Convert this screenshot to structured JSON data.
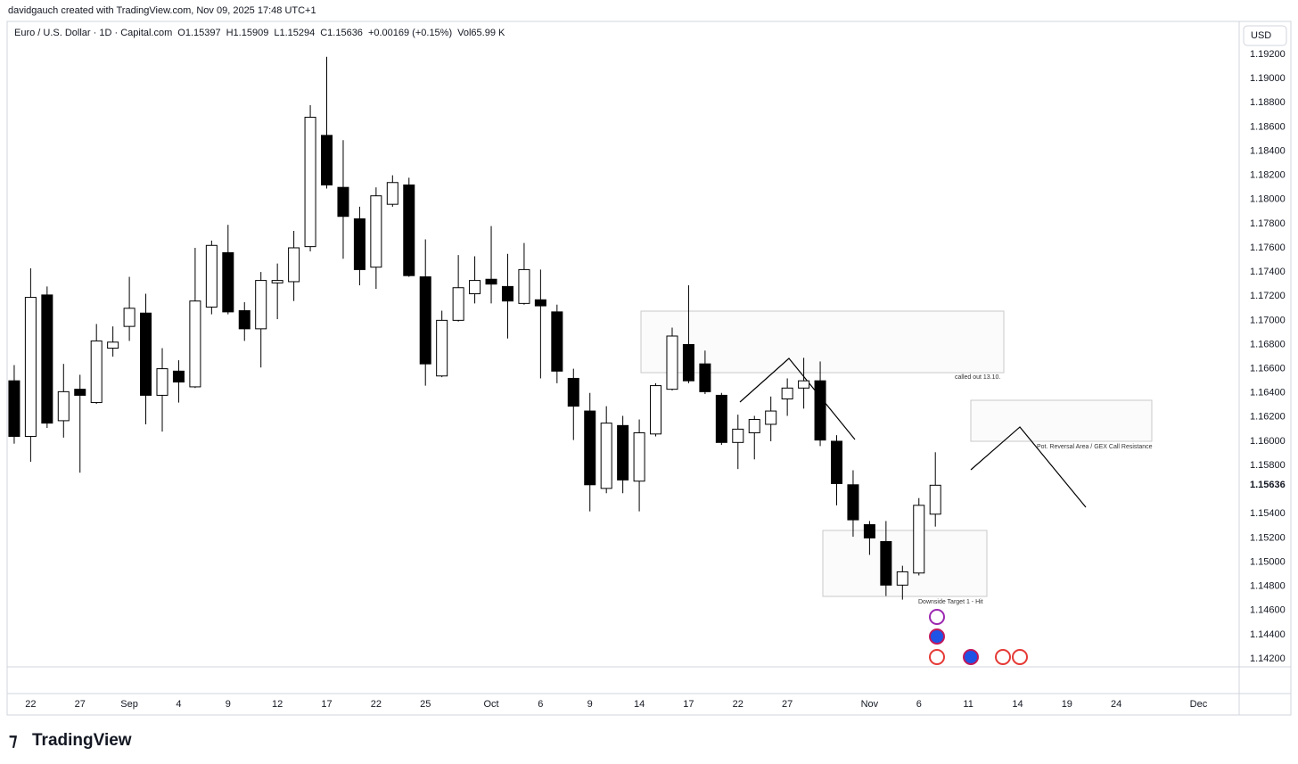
{
  "header": {
    "credit": "davidgauch created with TradingView.com, Nov 09, 2025 17:48 UTC+1",
    "currency_button": "USD",
    "logo": "TradingView"
  },
  "chart_data": {
    "type": "candlestick",
    "legend": {
      "symbol": "Euro / U.S. Dollar · 1D · Capital.com",
      "open": "O1.15397",
      "high": "H1.15909",
      "low": "L1.15294",
      "close": "C1.15636",
      "change": "+0.00169 (+0.15%)",
      "volume": "Vol65.99 K"
    },
    "open": [
      1.165,
      1.1604,
      1.1721,
      1.1617,
      1.1643,
      1.1632,
      1.1677,
      1.1695,
      1.1706,
      1.1638,
      1.1658,
      1.1645,
      1.1711,
      1.1756,
      1.1708,
      1.1693,
      1.1731,
      1.1732,
      1.1761,
      1.1853,
      1.181,
      1.1784,
      1.1744,
      1.1796,
      1.1812,
      1.1736,
      1.1654,
      1.17,
      1.1722,
      1.1734,
      1.1728,
      1.1714,
      1.1717,
      1.1707,
      1.1652,
      1.1625,
      1.1561,
      1.1613,
      1.1567,
      1.1606,
      1.1643,
      1.168,
      1.1664,
      1.1638,
      1.1599,
      1.1607,
      1.1614,
      1.1635,
      1.1644,
      1.165,
      1.16,
      1.1564,
      1.1531,
      1.1517,
      1.1481,
      1.1491,
      1.15397
    ],
    "high": [
      1.1663,
      1.1743,
      1.1728,
      1.1664,
      1.1655,
      1.1697,
      1.1695,
      1.1736,
      1.1722,
      1.1677,
      1.1667,
      1.176,
      1.1766,
      1.1779,
      1.1715,
      1.174,
      1.1747,
      1.1774,
      1.1878,
      1.1918,
      1.1849,
      1.1794,
      1.181,
      1.182,
      1.1818,
      1.1767,
      1.1708,
      1.1754,
      1.1753,
      1.1778,
      1.1755,
      1.1764,
      1.1742,
      1.1713,
      1.166,
      1.164,
      1.1629,
      1.1621,
      1.1618,
      1.1648,
      1.1694,
      1.1729,
      1.1675,
      1.164,
      1.1622,
      1.1621,
      1.1637,
      1.1652,
      1.1669,
      1.1666,
      1.1605,
      1.1576,
      1.1534,
      1.1534,
      1.1497,
      1.1553,
      1.15909
    ],
    "low": [
      1.1598,
      1.1583,
      1.1611,
      1.1603,
      1.1574,
      1.1631,
      1.167,
      1.1683,
      1.1614,
      1.1608,
      1.1632,
      1.1644,
      1.1705,
      1.1705,
      1.1683,
      1.1661,
      1.1701,
      1.1716,
      1.1757,
      1.1809,
      1.1751,
      1.1729,
      1.1726,
      1.1794,
      1.1736,
      1.1646,
      1.1653,
      1.1699,
      1.1714,
      1.1714,
      1.1685,
      1.1713,
      1.1652,
      1.1648,
      1.1601,
      1.1542,
      1.1557,
      1.1557,
      1.1542,
      1.1604,
      1.1642,
      1.1648,
      1.1639,
      1.1597,
      1.1577,
      1.1585,
      1.16,
      1.1621,
      1.1627,
      1.1596,
      1.1547,
      1.1521,
      1.1506,
      1.1472,
      1.1469,
      1.1489,
      1.15294
    ],
    "close": [
      1.1604,
      1.1719,
      1.1615,
      1.1641,
      1.1638,
      1.1683,
      1.1682,
      1.171,
      1.1638,
      1.166,
      1.1649,
      1.1716,
      1.1762,
      1.1707,
      1.1693,
      1.1733,
      1.1733,
      1.176,
      1.1868,
      1.1812,
      1.1786,
      1.1742,
      1.1803,
      1.1814,
      1.1737,
      1.1664,
      1.17,
      1.1727,
      1.1733,
      1.173,
      1.1716,
      1.1742,
      1.1712,
      1.1658,
      1.1629,
      1.1564,
      1.1615,
      1.1568,
      1.1607,
      1.1646,
      1.1687,
      1.165,
      1.1641,
      1.1599,
      1.161,
      1.1618,
      1.1625,
      1.1644,
      1.165,
      1.1601,
      1.1565,
      1.1535,
      1.152,
      1.1481,
      1.1492,
      1.1547,
      1.15636
    ],
    "up_color": "#ffffff",
    "down_color": "#000000",
    "wick_color": "#000000",
    "last_price_label": "1.15636",
    "xlim": [
      -0.43,
      74.47
    ],
    "xticks": [
      {
        "value": 1,
        "label": "22"
      },
      {
        "value": 4,
        "label": "27"
      },
      {
        "value": 7,
        "label": "Sep"
      },
      {
        "value": 10,
        "label": "4"
      },
      {
        "value": 13,
        "label": "9"
      },
      {
        "value": 16,
        "label": "12"
      },
      {
        "value": 19,
        "label": "17"
      },
      {
        "value": 22,
        "label": "22"
      },
      {
        "value": 25,
        "label": "25"
      },
      {
        "value": 29,
        "label": "Oct"
      },
      {
        "value": 32,
        "label": "6"
      },
      {
        "value": 35,
        "label": "9"
      },
      {
        "value": 38,
        "label": "14"
      },
      {
        "value": 41,
        "label": "17"
      },
      {
        "value": 44,
        "label": "22"
      },
      {
        "value": 47,
        "label": "27"
      },
      {
        "value": 52,
        "label": "Nov"
      },
      {
        "value": 55,
        "label": "6"
      },
      {
        "value": 58,
        "label": "11"
      },
      {
        "value": 61,
        "label": "14"
      },
      {
        "value": 64,
        "label": "19"
      },
      {
        "value": 67,
        "label": "24"
      },
      {
        "value": 72,
        "label": "Dec"
      }
    ],
    "ylim": [
      1.14134,
      1.19296
    ],
    "yticks": [
      {
        "value": 1.192,
        "label": "1.19200"
      },
      {
        "value": 1.19,
        "label": "1.19000"
      },
      {
        "value": 1.188,
        "label": "1.18800"
      },
      {
        "value": 1.186,
        "label": "1.18600"
      },
      {
        "value": 1.184,
        "label": "1.18400"
      },
      {
        "value": 1.182,
        "label": "1.18200"
      },
      {
        "value": 1.18,
        "label": "1.18000"
      },
      {
        "value": 1.178,
        "label": "1.17800"
      },
      {
        "value": 1.176,
        "label": "1.17600"
      },
      {
        "value": 1.174,
        "label": "1.17400"
      },
      {
        "value": 1.172,
        "label": "1.17200"
      },
      {
        "value": 1.17,
        "label": "1.17000"
      },
      {
        "value": 1.168,
        "label": "1.16800"
      },
      {
        "value": 1.166,
        "label": "1.16600"
      },
      {
        "value": 1.164,
        "label": "1.16400"
      },
      {
        "value": 1.162,
        "label": "1.16200"
      },
      {
        "value": 1.16,
        "label": "1.16000"
      },
      {
        "value": 1.158,
        "label": "1.15800"
      },
      {
        "value": 1.154,
        "label": "1.15400"
      },
      {
        "value": 1.152,
        "label": "1.15200"
      },
      {
        "value": 1.15,
        "label": "1.15000"
      },
      {
        "value": 1.148,
        "label": "1.14800"
      },
      {
        "value": 1.146,
        "label": "1.14600"
      },
      {
        "value": 1.144,
        "label": "1.14400"
      },
      {
        "value": 1.142,
        "label": "1.14200"
      }
    ],
    "grid": false,
    "annotations": [
      "called out 13.10.",
      "Pot. Reversal Area / GEX Call Resistance",
      "Downside Target 1 - Hit"
    ]
  }
}
